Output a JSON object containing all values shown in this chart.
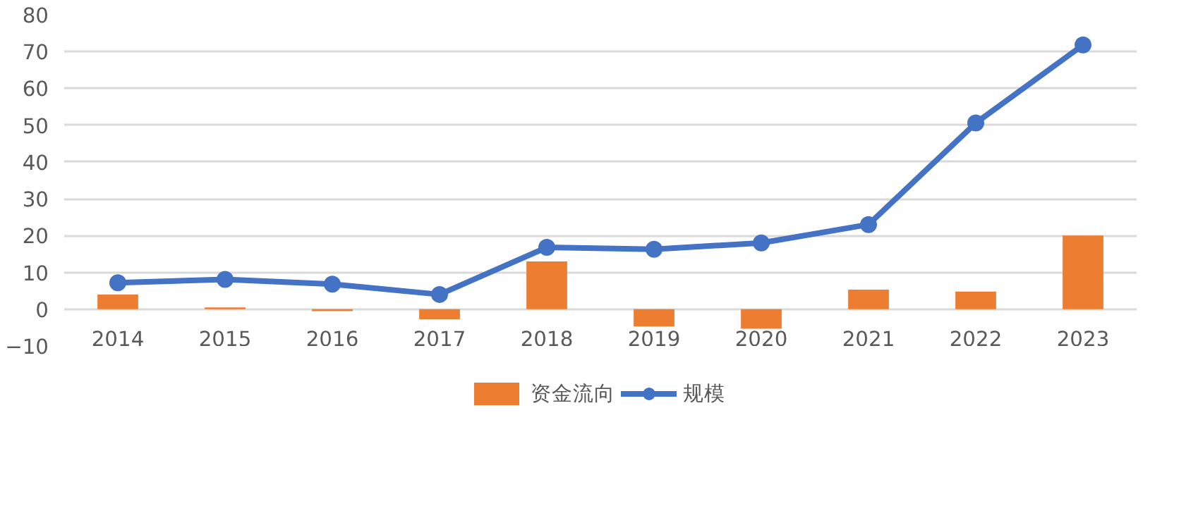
{
  "chart_data": {
    "type": "bar",
    "categories": [
      "2014",
      "2015",
      "2016",
      "2017",
      "2018",
      "2019",
      "2020",
      "2021",
      "2022",
      "2023"
    ],
    "series": [
      {
        "name": "资金流向",
        "color": "#ed7d31",
        "values": [
          4.0,
          0.5,
          -0.5,
          -2.7,
          13.0,
          -4.7,
          -5.3,
          5.3,
          4.8,
          20.0
        ]
      },
      {
        "name": "规模",
        "type": "line",
        "color": "#4472c4",
        "values": [
          7.2,
          8.1,
          6.8,
          4.0,
          16.8,
          16.3,
          18.0,
          23.0,
          50.6,
          71.8
        ]
      }
    ],
    "ylim": [
      -10,
      80
    ],
    "yticks": [
      -10,
      0,
      10,
      20,
      30,
      40,
      50,
      60,
      70,
      80
    ],
    "grid": "y",
    "legend": "bottom",
    "marker": "circle",
    "line_style": "solid"
  }
}
